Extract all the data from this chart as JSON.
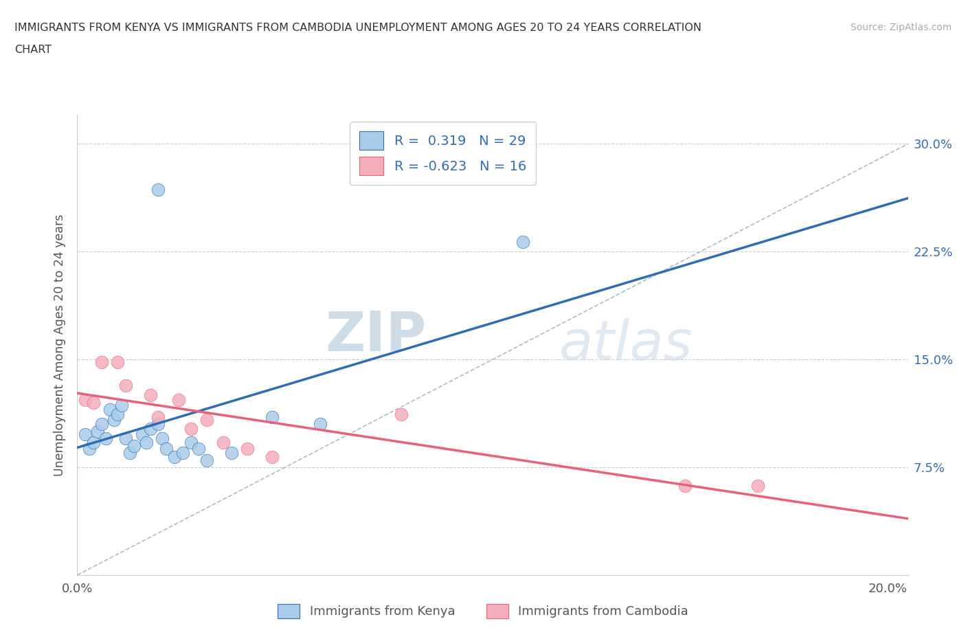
{
  "title_line1": "IMMIGRANTS FROM KENYA VS IMMIGRANTS FROM CAMBODIA UNEMPLOYMENT AMONG AGES 20 TO 24 YEARS CORRELATION",
  "title_line2": "CHART",
  "source_text": "Source: ZipAtlas.com",
  "ylabel": "Unemployment Among Ages 20 to 24 years",
  "xlim": [
    0.0,
    0.205
  ],
  "ylim": [
    0.0,
    0.32
  ],
  "kenya_color": "#A8CCEA",
  "cambodia_color": "#F4AEBB",
  "kenya_line_color": "#2E6DB4",
  "cambodia_line_color": "#E8607A",
  "diag_line_color": "#AABBD0",
  "kenya_R": 0.319,
  "kenya_N": 29,
  "cambodia_R": -0.623,
  "cambodia_N": 16,
  "kenya_scatter_x": [
    0.002,
    0.003,
    0.004,
    0.005,
    0.006,
    0.007,
    0.008,
    0.009,
    0.01,
    0.011,
    0.012,
    0.013,
    0.014,
    0.016,
    0.017,
    0.018,
    0.02,
    0.021,
    0.022,
    0.024,
    0.026,
    0.028,
    0.03,
    0.032,
    0.038,
    0.048,
    0.06,
    0.11,
    0.02
  ],
  "kenya_scatter_y": [
    0.098,
    0.088,
    0.092,
    0.1,
    0.105,
    0.095,
    0.115,
    0.108,
    0.112,
    0.118,
    0.095,
    0.085,
    0.09,
    0.098,
    0.092,
    0.102,
    0.105,
    0.095,
    0.088,
    0.082,
    0.085,
    0.092,
    0.088,
    0.08,
    0.085,
    0.11,
    0.105,
    0.232,
    0.268
  ],
  "cambodia_scatter_x": [
    0.002,
    0.004,
    0.006,
    0.01,
    0.012,
    0.018,
    0.02,
    0.025,
    0.028,
    0.032,
    0.036,
    0.042,
    0.048,
    0.08,
    0.15,
    0.168
  ],
  "cambodia_scatter_y": [
    0.122,
    0.12,
    0.148,
    0.148,
    0.132,
    0.125,
    0.11,
    0.122,
    0.102,
    0.108,
    0.092,
    0.088,
    0.082,
    0.112,
    0.062,
    0.062
  ],
  "watermark_zip": "ZIP",
  "watermark_atlas": "atlas",
  "background_color": "#FFFFFF",
  "grid_color": "#CCCCCC",
  "ytick_vals": [
    0.0,
    0.075,
    0.15,
    0.225,
    0.3
  ],
  "ytick_labels": [
    "",
    "7.5%",
    "15.0%",
    "22.5%",
    "30.0%"
  ],
  "xtick_vals": [
    0.0,
    0.05,
    0.1,
    0.15,
    0.2
  ],
  "xtick_labels": [
    "0.0%",
    "",
    "",
    "",
    "20.0%"
  ]
}
